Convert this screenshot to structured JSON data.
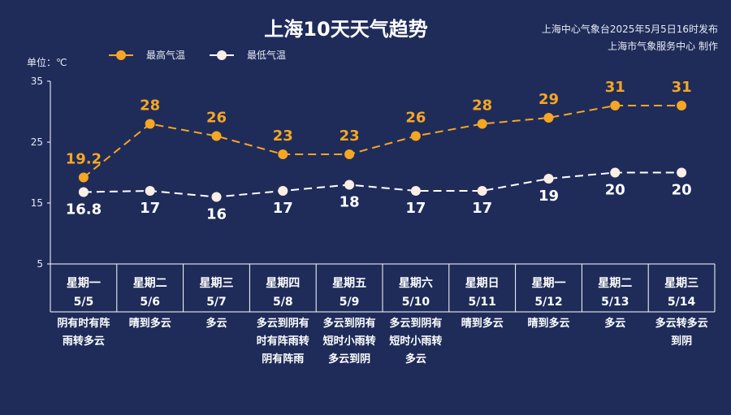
{
  "header": {
    "title": "上海10天天气趋势",
    "source_line1": "上海中心气象台2025年5月5日16时发布",
    "source_line2": "上海市气象服务中心 制作"
  },
  "chart_data": {
    "type": "line",
    "title": "上海10天天气趋势",
    "unit_label": "单位：℃",
    "ylim": [
      5,
      35
    ],
    "yticks": [
      5,
      15,
      25,
      35
    ],
    "legend_position": "top-left",
    "colors": {
      "high": "#f5a623",
      "low": "#ffffff"
    },
    "categories": [
      "5/5",
      "5/6",
      "5/7",
      "5/8",
      "5/9",
      "5/10",
      "5/11",
      "5/12",
      "5/13",
      "5/14"
    ],
    "weekdays": [
      "星期一",
      "星期二",
      "星期三",
      "星期四",
      "星期五",
      "星期六",
      "星期日",
      "星期一",
      "星期二",
      "星期三"
    ],
    "weather": [
      [
        "阴有时有阵",
        "雨转多云"
      ],
      [
        "晴到多云"
      ],
      [
        "多云"
      ],
      [
        "多云到阴有",
        "时有阵雨转",
        "阴有阵雨"
      ],
      [
        "多云到阴有",
        "短时小雨转",
        "多云到阴"
      ],
      [
        "多云到阴有",
        "短时小雨转",
        "多云"
      ],
      [
        "晴到多云"
      ],
      [
        "晴到多云"
      ],
      [
        "多云"
      ],
      [
        "多云转多云",
        "到阴"
      ]
    ],
    "series": [
      {
        "name": "最高气温",
        "values": [
          19.2,
          28,
          26,
          23,
          23,
          26,
          28,
          29,
          31,
          31
        ],
        "labels": [
          "19.2",
          "28",
          "26",
          "23",
          "23",
          "26",
          "28",
          "29",
          "31",
          "31"
        ]
      },
      {
        "name": "最低气温",
        "values": [
          16.8,
          17,
          16,
          17,
          18,
          17,
          17,
          19,
          20,
          20
        ],
        "labels": [
          "16.8",
          "17",
          "16",
          "17",
          "18",
          "17",
          "17",
          "19",
          "20",
          "20"
        ]
      }
    ]
  }
}
